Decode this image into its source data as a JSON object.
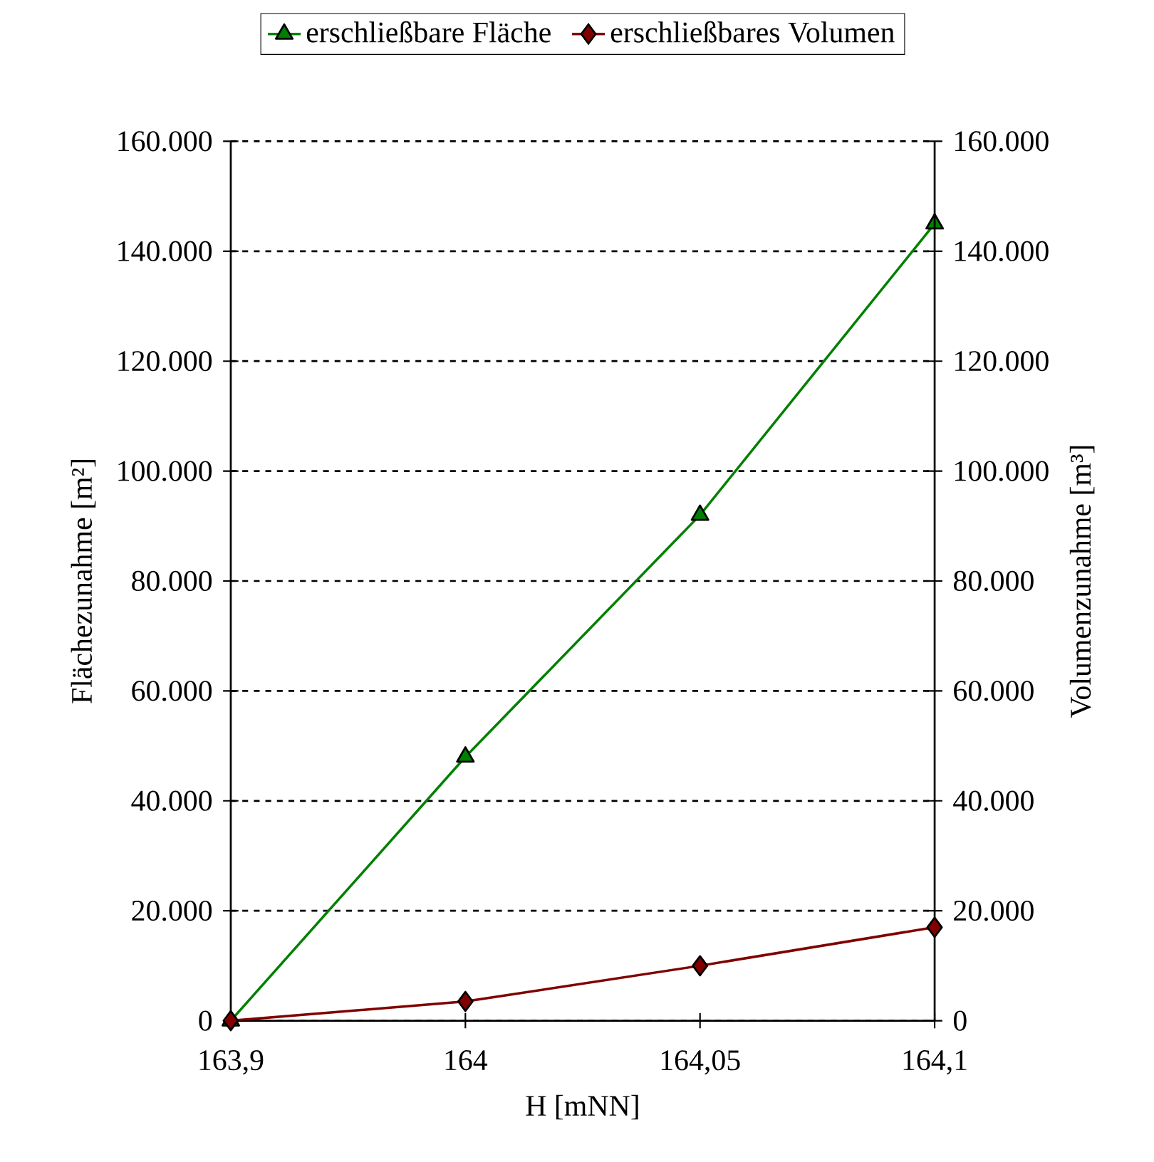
{
  "chart_data": {
    "type": "line",
    "xlabel": "H [mNN]",
    "ylabel": "Flächezunahme [m²]",
    "y2label": "Volumenzunahme [m³]",
    "categories": [
      "163,9",
      "164",
      "164,05",
      "164,1"
    ],
    "series": [
      {
        "name": "erschließbare Fläche",
        "color": "#008000",
        "marker": "triangle",
        "values": [
          0,
          48000,
          92000,
          145000
        ]
      },
      {
        "name": "erschließbares Volumen",
        "color": "#800000",
        "marker": "diamond",
        "axis": "y2",
        "values": [
          0,
          3500,
          10000,
          17000
        ]
      }
    ],
    "ylim": [
      0,
      160000
    ],
    "yticks": [
      {
        "value": 0,
        "label": "0"
      },
      {
        "value": 20000,
        "label": "20.000"
      },
      {
        "value": 40000,
        "label": "40.000"
      },
      {
        "value": 60000,
        "label": "60.000"
      },
      {
        "value": 80000,
        "label": "80.000"
      },
      {
        "value": 100000,
        "label": "100.000"
      },
      {
        "value": 120000,
        "label": "120.000"
      },
      {
        "value": 140000,
        "label": "140.000"
      },
      {
        "value": 160000,
        "label": "160.000"
      }
    ],
    "y2lim": [
      0,
      160000
    ],
    "y2ticks": [
      {
        "value": 0,
        "label": "0"
      },
      {
        "value": 20000,
        "label": "20.000"
      },
      {
        "value": 40000,
        "label": "40.000"
      },
      {
        "value": 60000,
        "label": "60.000"
      },
      {
        "value": 80000,
        "label": "80.000"
      },
      {
        "value": 100000,
        "label": "100.000"
      },
      {
        "value": 120000,
        "label": "120.000"
      },
      {
        "value": 140000,
        "label": "140.000"
      },
      {
        "value": 160000,
        "label": "160.000"
      }
    ],
    "grid": "y",
    "legend": "top",
    "line_style": "solid"
  }
}
